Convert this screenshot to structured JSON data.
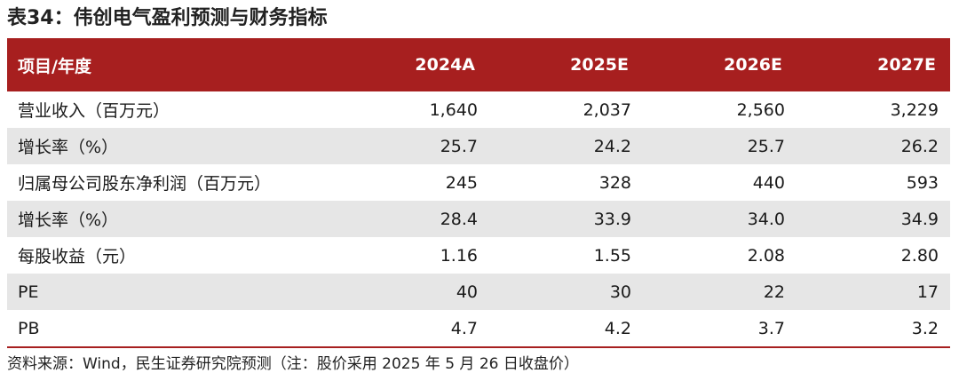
{
  "title": "表34：伟创电气盈利预测与财务指标",
  "table": {
    "header": [
      "项目/年度",
      "2024A",
      "2025E",
      "2026E",
      "2027E"
    ],
    "rows": [
      {
        "label": "营业收入（百万元）",
        "values": [
          "1,640",
          "2,037",
          "2,560",
          "3,229"
        ]
      },
      {
        "label": "增长率（%）",
        "values": [
          "25.7",
          "24.2",
          "25.7",
          "26.2"
        ]
      },
      {
        "label": "归属母公司股东净利润（百万元）",
        "values": [
          "245",
          "328",
          "440",
          "593"
        ]
      },
      {
        "label": "增长率（%）",
        "values": [
          "28.4",
          "33.9",
          "34.0",
          "34.9"
        ]
      },
      {
        "label": "每股收益（元）",
        "values": [
          "1.16",
          "1.55",
          "2.08",
          "2.80"
        ]
      },
      {
        "label": "PE",
        "values": [
          "40",
          "30",
          "22",
          "17"
        ]
      },
      {
        "label": "PB",
        "values": [
          "4.7",
          "4.2",
          "3.7",
          "3.2"
        ]
      }
    ]
  },
  "footnote": "资料来源：Wind，民生证券研究院预测（注：股价采用 2025 年 5 月 26 日收盘价）",
  "colors": {
    "header_bg": "#a71f1f",
    "shaded_row": "#e6e6e6"
  }
}
